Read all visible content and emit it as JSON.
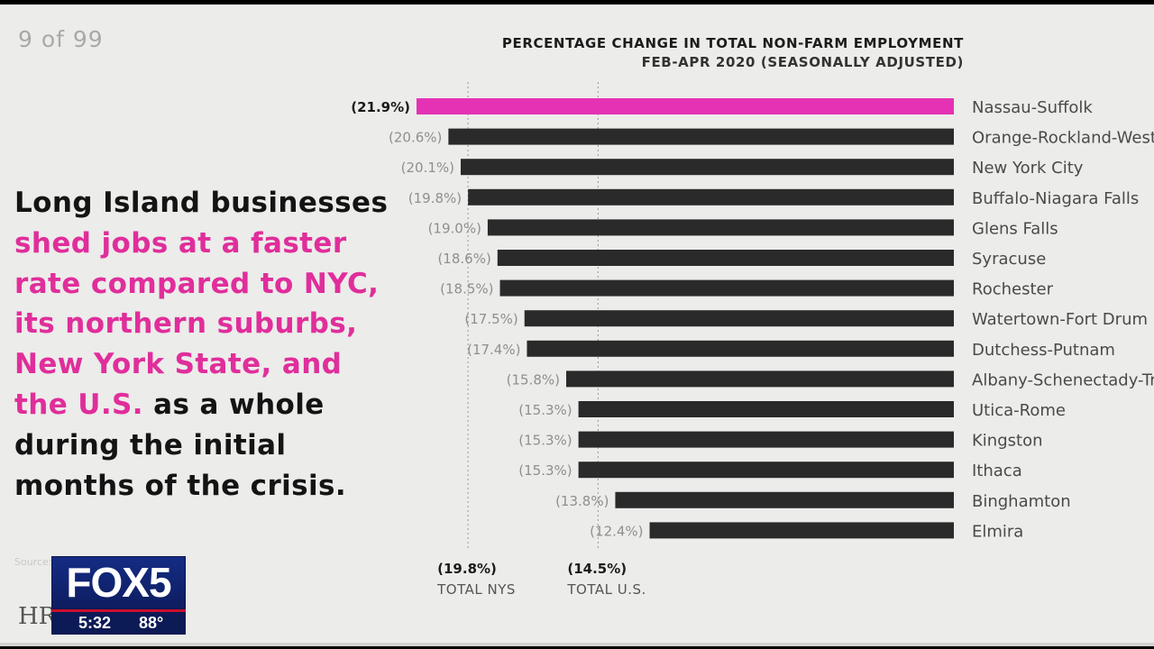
{
  "slide": {
    "counter": "9 of 99"
  },
  "headline": {
    "part1": "Long Island businesses ",
    "highlight": "shed jobs at a faster rate compared to NYC, its northern suburbs, New York State, and the U.S.",
    "part2": " as a whole during the initial months of the crisis."
  },
  "source_note": "Source: ... Statistics",
  "publisher_logo": "HR",
  "chart_data": {
    "type": "bar",
    "orientation": "horizontal",
    "title": "PERCENTAGE CHANGE IN TOTAL NON-FARM EMPLOYMENT",
    "subtitle": "FEB-APR 2020 (SEASONALLY ADJUSTED)",
    "categories": [
      "Nassau-Suffolk",
      "Orange-Rockland-Westchester",
      "New York City",
      "Buffalo-Niagara Falls",
      "Glens Falls",
      "Syracuse",
      "Rochester",
      "Watertown-Fort Drum",
      "Dutchess-Putnam",
      "Albany-Schenectady-Troy",
      "Utica-Rome",
      "Kingston",
      "Ithaca",
      "Binghamton",
      "Elmira"
    ],
    "values": [
      -21.9,
      -20.6,
      -20.1,
      -19.8,
      -19.0,
      -18.6,
      -18.5,
      -17.5,
      -17.4,
      -15.8,
      -15.3,
      -15.3,
      -15.3,
      -13.8,
      -12.4
    ],
    "value_labels": [
      "(21.9%)",
      "(20.6%)",
      "(20.1%)",
      "(19.8%)",
      "(19.0%)",
      "(18.6%)",
      "(18.5%)",
      "(17.5%)",
      "(17.4%)",
      "(15.8%)",
      "(15.3%)",
      "(15.3%)",
      "(15.3%)",
      "(13.8%)",
      "(12.4%)"
    ],
    "highlight_index": 0,
    "colors": {
      "highlight": "#e532b4",
      "bar": "#2a2a2a"
    },
    "xlim": [
      0,
      -21.9
    ],
    "reference_lines": [
      {
        "value": -19.8,
        "label": "(19.8%)",
        "sublabel": "TOTAL NYS"
      },
      {
        "value": -14.5,
        "label": "(14.5%)",
        "sublabel": "TOTAL U.S."
      }
    ]
  },
  "broadcast": {
    "channel": "FOX5",
    "time": "5:32",
    "temperature": "88°"
  }
}
